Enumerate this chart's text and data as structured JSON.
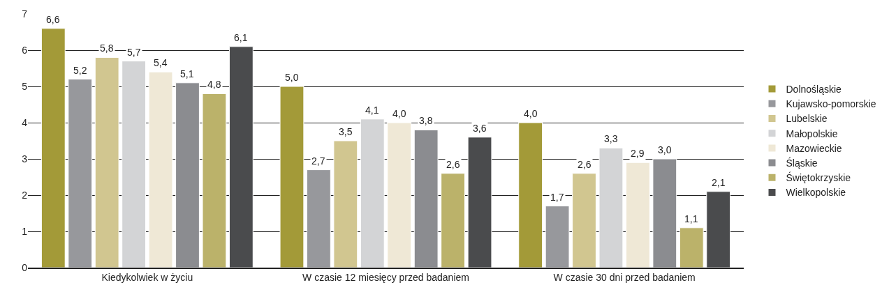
{
  "chart_data": {
    "type": "bar",
    "categories": [
      "Kiedykolwiek w życiu",
      "W czasie 12 miesięcy przed badaniem",
      "W czasie 30 dni przed badaniem"
    ],
    "series": [
      {
        "name": "Dolnośląskie",
        "color": "#a39a38",
        "values": [
          6.6,
          5.0,
          4.0
        ],
        "value_labels": [
          "6,6",
          "5,0",
          "4,0"
        ]
      },
      {
        "name": "Kujawsko-pomorskie",
        "color": "#97989c",
        "values": [
          5.2,
          2.7,
          1.7
        ],
        "value_labels": [
          "5,2",
          "2,7",
          "1,7"
        ]
      },
      {
        "name": "Lubelskie",
        "color": "#d1c690",
        "values": [
          5.8,
          3.5,
          2.6
        ],
        "value_labels": [
          "5,8",
          "3,5",
          "2,6"
        ]
      },
      {
        "name": "Małopolskie",
        "color": "#d3d4d6",
        "values": [
          5.7,
          4.1,
          3.3
        ],
        "value_labels": [
          "5,7",
          "4,1",
          "3,3"
        ]
      },
      {
        "name": "Mazowieckie",
        "color": "#efe8d6",
        "values": [
          5.4,
          4.0,
          2.9
        ],
        "value_labels": [
          "5,4",
          "4,0",
          "2,9"
        ]
      },
      {
        "name": "Śląskie",
        "color": "#8b8c90",
        "values": [
          5.1,
          3.8,
          3.0
        ],
        "value_labels": [
          "5,1",
          "3,8",
          "3,0"
        ]
      },
      {
        "name": "Świętokrzyskie",
        "color": "#bbb26a",
        "values": [
          4.8,
          2.6,
          1.1
        ],
        "value_labels": [
          "4,8",
          "2,6",
          "1,1"
        ]
      },
      {
        "name": "Wielkopolskie",
        "color": "#4a4b4d",
        "values": [
          6.1,
          3.6,
          2.1
        ],
        "value_labels": [
          "6,1",
          "3,6",
          "2,1"
        ]
      }
    ],
    "ylim": [
      0,
      7
    ],
    "yticks": [
      0,
      1,
      2,
      3,
      4,
      5,
      6,
      7
    ],
    "grid": "y",
    "legend": "right"
  }
}
